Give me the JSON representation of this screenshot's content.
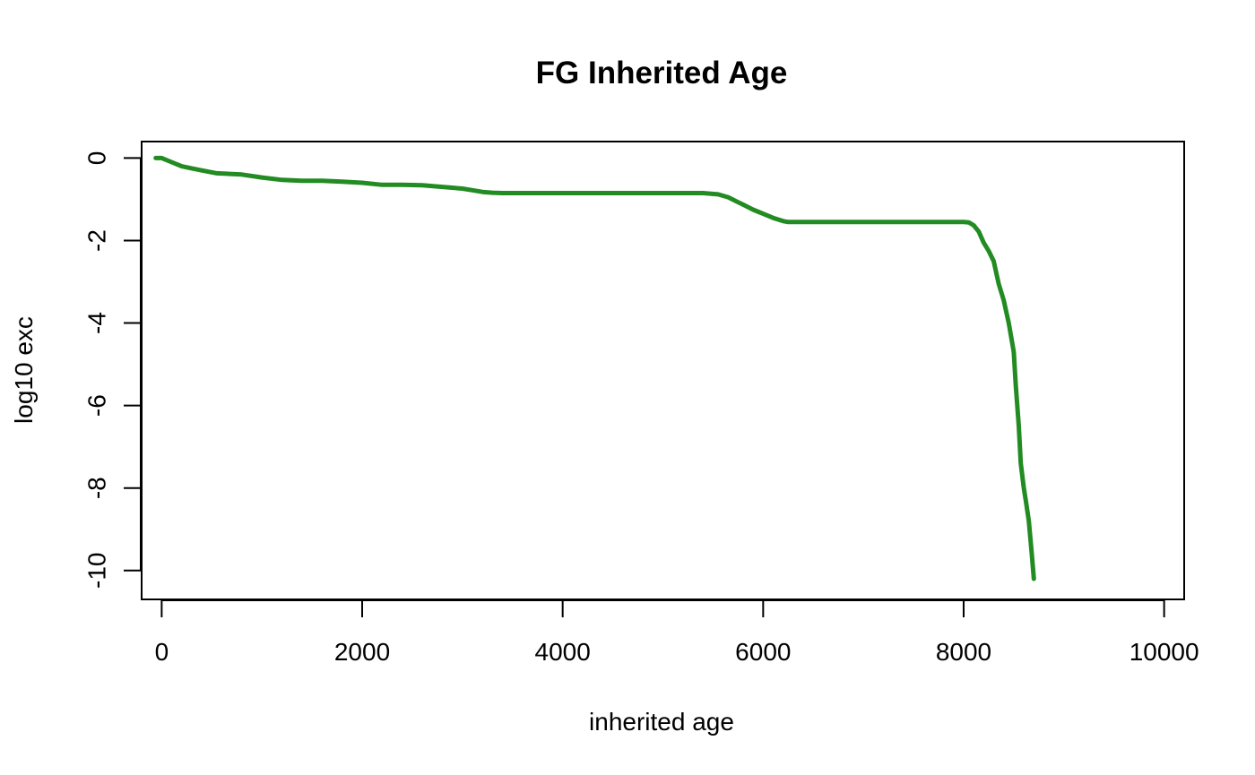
{
  "chart_data": {
    "type": "line",
    "title": "FG Inherited Age",
    "xlabel": "inherited age",
    "ylabel": "log10 exc",
    "xlim": [
      -200,
      10200
    ],
    "ylim": [
      -10.7,
      0.4
    ],
    "x_ticks": [
      0,
      2000,
      4000,
      6000,
      8000,
      10000
    ],
    "y_ticks": [
      0,
      -2,
      -4,
      -6,
      -8,
      -10
    ],
    "x_tick_labels": [
      "0",
      "2000",
      "4000",
      "6000",
      "8000",
      "10000"
    ],
    "y_tick_labels": [
      "0",
      "-2",
      "-4",
      "-6",
      "-8",
      "-10"
    ],
    "grid": false,
    "series": [
      {
        "color": "#228B22",
        "x": [
          -60,
          0,
          100,
          200,
          300,
          400,
          550,
          800,
          1000,
          1200,
          1400,
          1600,
          1800,
          2000,
          2200,
          2400,
          2600,
          2800,
          3000,
          3100,
          3200,
          3300,
          3400,
          3600,
          4000,
          4500,
          5000,
          5400,
          5550,
          5650,
          5750,
          5800,
          5900,
          6000,
          6100,
          6200,
          6250,
          6400,
          7000,
          7500,
          7900,
          8000,
          8050,
          8100,
          8150,
          8200,
          8250,
          8300,
          8350,
          8400,
          8450,
          8500,
          8520,
          8550,
          8570,
          8600,
          8620,
          8650,
          8680,
          8700
        ],
        "y": [
          0.0,
          0.0,
          -0.1,
          -0.2,
          -0.25,
          -0.3,
          -0.37,
          -0.4,
          -0.47,
          -0.53,
          -0.55,
          -0.55,
          -0.57,
          -0.6,
          -0.65,
          -0.65,
          -0.66,
          -0.7,
          -0.74,
          -0.78,
          -0.82,
          -0.84,
          -0.85,
          -0.85,
          -0.85,
          -0.85,
          -0.85,
          -0.85,
          -0.88,
          -0.95,
          -1.07,
          -1.13,
          -1.25,
          -1.35,
          -1.45,
          -1.53,
          -1.55,
          -1.55,
          -1.55,
          -1.55,
          -1.55,
          -1.55,
          -1.56,
          -1.63,
          -1.78,
          -2.05,
          -2.25,
          -2.5,
          -3.05,
          -3.45,
          -4.0,
          -4.7,
          -5.5,
          -6.5,
          -7.4,
          -8.0,
          -8.3,
          -8.8,
          -9.6,
          -10.2
        ]
      }
    ]
  }
}
